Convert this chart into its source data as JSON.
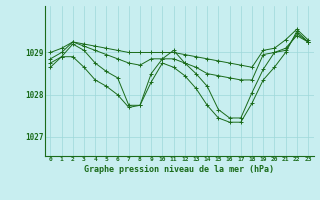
{
  "title": "Graphe pression niveau de la mer (hPa)",
  "bg_color": "#c8eef0",
  "grid_color": "#9ed8da",
  "line_color": "#1a6b1a",
  "x_labels": [
    "0",
    "1",
    "2",
    "3",
    "4",
    "5",
    "6",
    "7",
    "8",
    "9",
    "10",
    "11",
    "12",
    "13",
    "14",
    "15",
    "16",
    "17",
    "18",
    "19",
    "20",
    "21",
    "22",
    "23"
  ],
  "yticks": [
    1027,
    1028,
    1029
  ],
  "ylim": [
    1026.55,
    1030.1
  ],
  "xlim": [
    -0.5,
    23.5
  ],
  "series": [
    [
      1029.0,
      1029.1,
      1029.25,
      1029.2,
      1029.15,
      1029.1,
      1029.05,
      1029.0,
      1029.0,
      1029.0,
      1029.0,
      1029.0,
      1028.95,
      1028.9,
      1028.85,
      1028.8,
      1028.75,
      1028.7,
      1028.65,
      1029.05,
      1029.1,
      1029.3,
      1029.55,
      1029.3
    ],
    [
      1028.85,
      1029.0,
      1029.25,
      1029.15,
      1029.05,
      1028.95,
      1028.85,
      1028.75,
      1028.7,
      1028.85,
      1028.85,
      1028.85,
      1028.75,
      1028.65,
      1028.5,
      1028.45,
      1028.4,
      1028.35,
      1028.35,
      1028.95,
      1029.0,
      1029.1,
      1029.4,
      1029.25
    ],
    [
      1028.75,
      1028.9,
      1029.2,
      1029.05,
      1028.75,
      1028.55,
      1028.4,
      1027.75,
      1027.75,
      1028.5,
      1028.85,
      1029.05,
      1028.75,
      1028.5,
      1028.2,
      1027.65,
      1027.45,
      1027.45,
      1028.05,
      1028.6,
      1029.0,
      1029.05,
      1029.45,
      1029.25
    ],
    [
      1028.65,
      1028.9,
      1028.9,
      1028.65,
      1028.35,
      1028.2,
      1028.0,
      1027.7,
      1027.75,
      1028.3,
      1028.75,
      1028.65,
      1028.45,
      1028.15,
      1027.75,
      1027.45,
      1027.35,
      1027.35,
      1027.8,
      1028.35,
      1028.65,
      1029.0,
      1029.5,
      1029.25
    ]
  ]
}
